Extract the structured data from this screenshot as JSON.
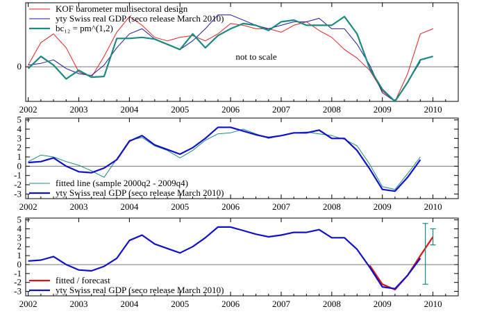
{
  "chart_data": [
    {
      "type": "line",
      "title": "",
      "xlabel": "",
      "ylabel": "",
      "xlim": [
        2001.95,
        2010.5
      ],
      "ylim": [
        -1.0,
        1.85
      ],
      "x_ticks": [
        "2002",
        "2003",
        "2004",
        "2005",
        "2006",
        "2007",
        "2008",
        "2009",
        "2010"
      ],
      "y_ticks": [
        "0"
      ],
      "annotation": "not to scale",
      "legend_placement": "top-left",
      "series": [
        {
          "name": "KOF barometer multisectoral design",
          "color": "#e02020",
          "x": [
            2002.0,
            2002.25,
            2002.5,
            2002.75,
            2003.0,
            2003.25,
            2003.5,
            2003.75,
            2004.0,
            2004.25,
            2004.5,
            2004.75,
            2005.0,
            2005.25,
            2005.5,
            2005.75,
            2006.0,
            2006.25,
            2006.5,
            2006.75,
            2007.0,
            2007.25,
            2007.5,
            2007.75,
            2008.0,
            2008.25,
            2008.5,
            2008.75,
            2009.0,
            2009.25,
            2009.5,
            2009.75,
            2010.0
          ],
          "y": [
            0.05,
            0.7,
            0.95,
            0.55,
            -0.15,
            -0.3,
            0.3,
            1.0,
            1.45,
            1.2,
            0.85,
            0.75,
            0.85,
            0.9,
            0.75,
            0.95,
            1.25,
            1.2,
            1.1,
            1.1,
            1.0,
            1.2,
            1.3,
            1.05,
            0.85,
            0.5,
            0.25,
            -0.1,
            -0.7,
            -1.0,
            -0.2,
            0.95,
            1.1
          ]
        },
        {
          "name": "yty Swiss real GDP (seco release March 2010)",
          "color": "#1a1aa0",
          "x": [
            2002.0,
            2002.25,
            2002.5,
            2002.75,
            2003.0,
            2003.25,
            2003.5,
            2003.75,
            2004.0,
            2004.25,
            2004.5,
            2004.75,
            2005.0,
            2005.25,
            2005.5,
            2005.75,
            2006.0,
            2006.25,
            2006.5,
            2006.75,
            2007.0,
            2007.25,
            2007.5,
            2007.75,
            2008.0,
            2008.25,
            2008.5,
            2008.75,
            2009.0,
            2009.25,
            2009.5,
            2009.75
          ],
          "y": [
            0.05,
            0.1,
            0.2,
            -0.05,
            -0.2,
            -0.25,
            0.05,
            0.55,
            0.95,
            1.1,
            0.8,
            0.65,
            0.5,
            0.75,
            1.1,
            1.5,
            1.5,
            1.35,
            1.2,
            1.1,
            1.2,
            1.3,
            1.3,
            1.4,
            1.1,
            1.1,
            0.65,
            0.05,
            -0.75,
            -1.0,
            -0.45,
            0.15
          ]
        },
        {
          "name": "bc₁₂ = pm^(1,2)",
          "color": "#1a8a80",
          "x": [
            2002.0,
            2002.25,
            2002.5,
            2002.75,
            2003.0,
            2003.25,
            2003.5,
            2003.75,
            2004.0,
            2004.25,
            2004.5,
            2004.75,
            2005.0,
            2005.25,
            2005.5,
            2005.75,
            2006.0,
            2006.25,
            2006.5,
            2006.75,
            2007.0,
            2007.25,
            2007.5,
            2007.75,
            2008.0,
            2008.25,
            2008.5,
            2008.75,
            2009.0,
            2009.25,
            2009.5,
            2009.75,
            2010.0
          ],
          "y": [
            -0.05,
            0.3,
            0.05,
            -0.35,
            -0.1,
            -0.3,
            -0.28,
            0.82,
            0.82,
            0.85,
            0.8,
            0.65,
            0.5,
            0.95,
            0.55,
            0.9,
            1.1,
            1.25,
            1.2,
            1.05,
            1.3,
            1.35,
            1.2,
            1.2,
            1.2,
            1.45,
            0.95,
            -0.05,
            -0.65,
            -1.0,
            -0.45,
            0.2,
            0.3
          ]
        }
      ]
    },
    {
      "type": "line",
      "title": "",
      "xlabel": "",
      "ylabel": "",
      "xlim": [
        2001.95,
        2010.5
      ],
      "ylim": [
        -3.5,
        5.2
      ],
      "x_ticks": [
        "2002",
        "2003",
        "2004",
        "2005",
        "2006",
        "2007",
        "2008",
        "2009",
        "2010"
      ],
      "y_ticks": [
        "-3",
        "-2",
        "-1",
        "0",
        "1",
        "2",
        "3",
        "4",
        "5"
      ],
      "legend_placement": "bottom-left",
      "series": [
        {
          "name": "fitted line (sample 2000q2 - 2009q4)",
          "color": "#1a8a80",
          "x": [
            2002.0,
            2002.25,
            2002.5,
            2002.75,
            2003.0,
            2003.25,
            2003.5,
            2003.75,
            2004.0,
            2004.25,
            2004.5,
            2004.75,
            2005.0,
            2005.25,
            2005.5,
            2005.75,
            2006.0,
            2006.25,
            2006.5,
            2006.75,
            2007.0,
            2007.25,
            2007.5,
            2007.75,
            2008.0,
            2008.25,
            2008.5,
            2008.75,
            2009.0,
            2009.25,
            2009.5,
            2009.75
          ],
          "y": [
            0.5,
            1.2,
            1.0,
            0.5,
            0.1,
            -0.5,
            -1.2,
            0.8,
            2.8,
            3.1,
            2.2,
            1.7,
            0.9,
            1.7,
            2.8,
            3.5,
            3.6,
            4.0,
            3.5,
            3.0,
            3.3,
            3.6,
            3.7,
            3.5,
            3.3,
            2.9,
            2.2,
            0.2,
            -2.2,
            -2.5,
            -0.8,
            1.0
          ]
        },
        {
          "name": "yty Swiss real GDP (seco release March 2010)",
          "color": "#1010c8",
          "x": [
            2002.0,
            2002.25,
            2002.5,
            2002.75,
            2003.0,
            2003.25,
            2003.5,
            2003.75,
            2004.0,
            2004.25,
            2004.5,
            2004.75,
            2005.0,
            2005.25,
            2005.5,
            2005.75,
            2006.0,
            2006.25,
            2006.5,
            2006.75,
            2007.0,
            2007.25,
            2007.5,
            2007.75,
            2008.0,
            2008.25,
            2008.5,
            2008.75,
            2009.0,
            2009.25,
            2009.5,
            2009.75
          ],
          "y": [
            0.4,
            0.5,
            0.9,
            0.0,
            -0.6,
            -0.7,
            -0.2,
            0.7,
            2.7,
            3.3,
            2.3,
            1.8,
            1.3,
            2.0,
            3.0,
            4.2,
            4.2,
            3.8,
            3.4,
            3.1,
            3.3,
            3.6,
            3.6,
            3.9,
            3.0,
            3.0,
            1.7,
            -0.3,
            -2.5,
            -2.7,
            -1.2,
            0.7
          ]
        }
      ]
    },
    {
      "type": "line",
      "title": "",
      "xlabel": "",
      "ylabel": "",
      "xlim": [
        2001.95,
        2010.5
      ],
      "ylim": [
        -3.5,
        5.2
      ],
      "x_ticks": [
        "2002",
        "2003",
        "2004",
        "2005",
        "2006",
        "2007",
        "2008",
        "2009",
        "2010"
      ],
      "y_ticks": [
        "-3",
        "-2",
        "-1",
        "0",
        "1",
        "2",
        "3",
        "4",
        "5"
      ],
      "legend_placement": "bottom-left",
      "series": [
        {
          "name": "fitted / forecast",
          "color": "#e01010",
          "x": [
            2008.75,
            2009.0,
            2009.25,
            2009.5,
            2009.75,
            2010.0
          ],
          "y": [
            -0.1,
            -2.2,
            -2.8,
            -1.2,
            1.0,
            3.1
          ]
        },
        {
          "name": "yty Swiss real GDP (seco release March 2010)",
          "color": "#1010c8",
          "x": [
            2002.0,
            2002.25,
            2002.5,
            2002.75,
            2003.0,
            2003.25,
            2003.5,
            2003.75,
            2004.0,
            2004.25,
            2004.5,
            2004.75,
            2005.0,
            2005.25,
            2005.5,
            2005.75,
            2006.0,
            2006.25,
            2006.5,
            2006.75,
            2007.0,
            2007.25,
            2007.5,
            2007.75,
            2008.0,
            2008.25,
            2008.5,
            2008.75,
            2009.0,
            2009.25,
            2009.5,
            2009.75
          ],
          "y": [
            0.4,
            0.5,
            0.9,
            0.0,
            -0.6,
            -0.7,
            -0.2,
            0.7,
            2.7,
            3.3,
            2.3,
            1.8,
            1.3,
            2.0,
            3.0,
            4.2,
            4.2,
            3.8,
            3.4,
            3.1,
            3.3,
            3.6,
            3.6,
            3.9,
            3.0,
            3.0,
            1.7,
            -0.3,
            -2.5,
            -2.7,
            -1.2,
            0.7
          ]
        }
      ],
      "forecast_intervals": [
        {
          "x": 2009.85,
          "low": -2.2,
          "high": 4.6,
          "color": "#1a8a80"
        },
        {
          "x": 2010.0,
          "low": 2.2,
          "high": 4.0,
          "color": "#1a8a80"
        }
      ]
    }
  ]
}
